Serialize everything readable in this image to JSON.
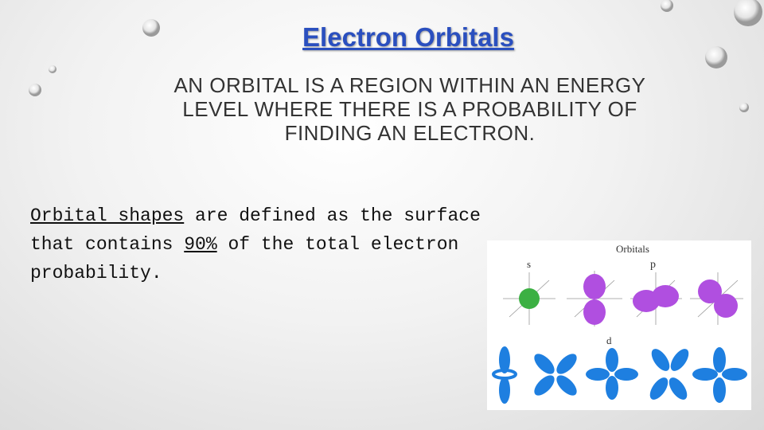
{
  "title": "Electron Orbitals",
  "subtitle": "AN ORBITAL IS A REGION WITHIN AN ENERGY LEVEL WHERE THERE IS A PROBABILITY OF FINDING AN ELECTRON.",
  "body": {
    "segments": [
      "Orbital shapes",
      " are defined as the surface that contains ",
      "90%",
      " of the total electron probability."
    ]
  },
  "figure": {
    "title": "Orbitals",
    "labels": [
      "s",
      "p",
      "d"
    ]
  }
}
